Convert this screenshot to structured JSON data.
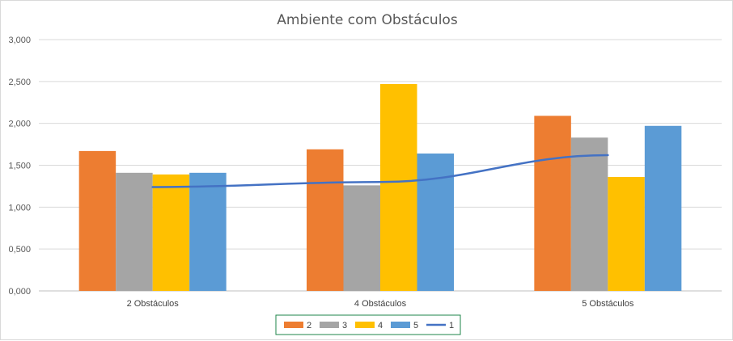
{
  "chart_data": {
    "type": "bar",
    "title": "Ambiente com Obstáculos",
    "categories": [
      "2 Obstáculos",
      "4 Obstáculos",
      "5 Obstáculos"
    ],
    "ylim": [
      0,
      3
    ],
    "yticks": [
      "0,000",
      "0,500",
      "1,000",
      "1,500",
      "2,000",
      "2,500",
      "3,000"
    ],
    "grid": true,
    "legend_position": "bottom",
    "series": [
      {
        "name": "2",
        "kind": "bar",
        "color": "#ED7D31",
        "values": [
          1.67,
          1.69,
          2.09
        ]
      },
      {
        "name": "3",
        "kind": "bar",
        "color": "#A5A5A5",
        "values": [
          1.41,
          1.26,
          1.83
        ]
      },
      {
        "name": "4",
        "kind": "bar",
        "color": "#FFC000",
        "values": [
          1.39,
          2.47,
          1.36
        ]
      },
      {
        "name": "5",
        "kind": "bar",
        "color": "#5B9BD5",
        "values": [
          1.41,
          1.64,
          1.97
        ]
      },
      {
        "name": "1",
        "kind": "line",
        "color": "#4472C4",
        "values": [
          1.24,
          1.3,
          1.62
        ]
      }
    ]
  }
}
